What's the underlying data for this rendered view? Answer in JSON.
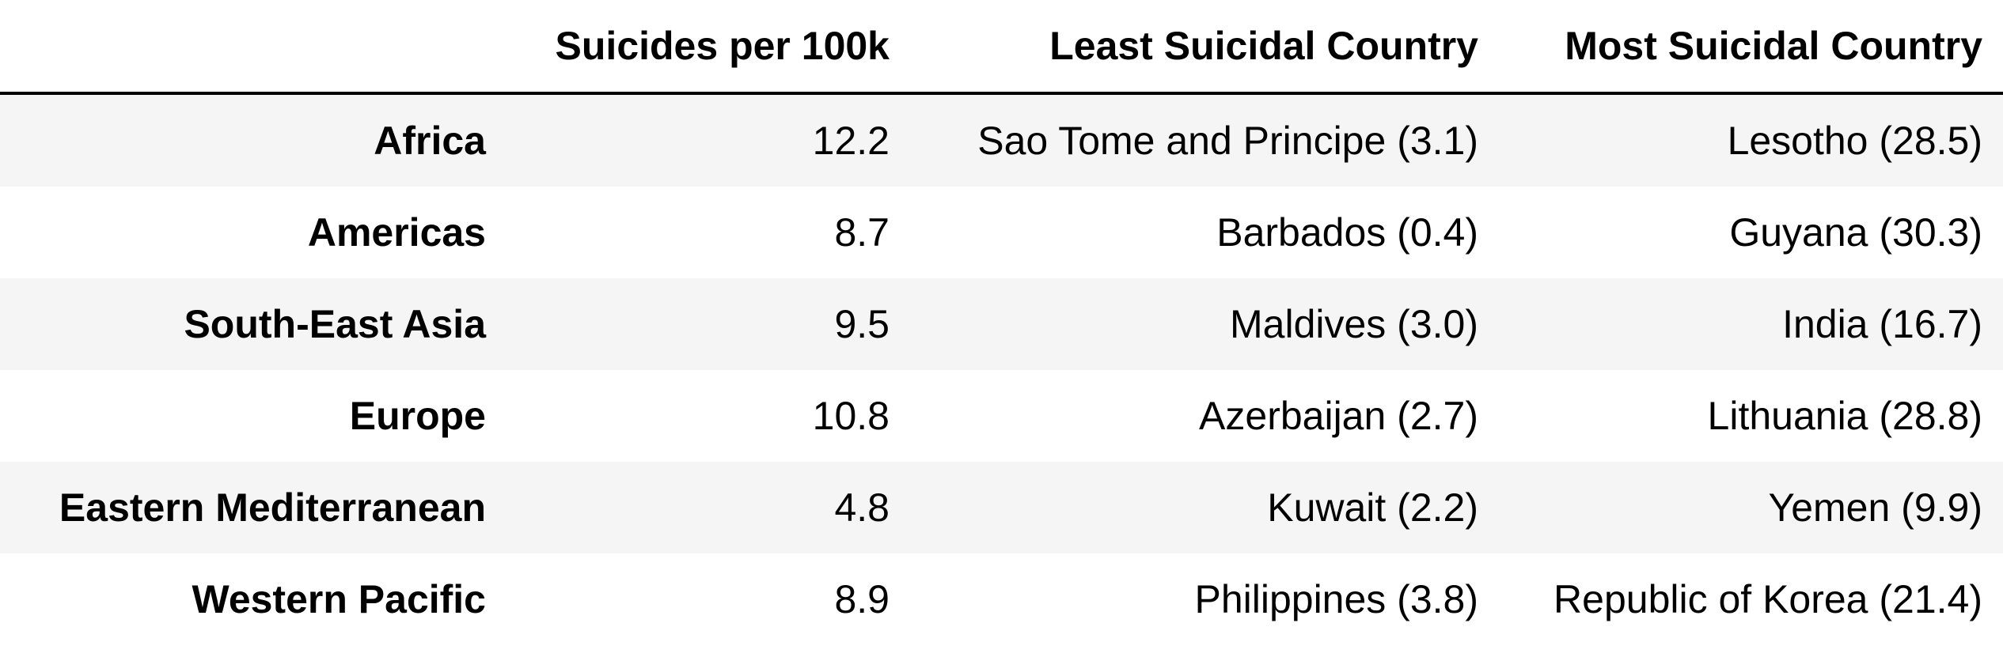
{
  "table": {
    "columns": [
      "",
      "Suicides per 100k",
      "Least Suicidal Country",
      "Most Suicidal Country"
    ],
    "rows": [
      {
        "region": "Africa",
        "rate": "12.2",
        "least": "Sao Tome and Principe (3.1)",
        "most": "Lesotho (28.5)"
      },
      {
        "region": "Americas",
        "rate": "8.7",
        "least": "Barbados (0.4)",
        "most": "Guyana (30.3)"
      },
      {
        "region": "South-East Asia",
        "rate": "9.5",
        "least": "Maldives (3.0)",
        "most": "India (16.7)"
      },
      {
        "region": "Europe",
        "rate": "10.8",
        "least": "Azerbaijan (2.7)",
        "most": "Lithuania (28.8)"
      },
      {
        "region": "Eastern Mediterranean",
        "rate": "4.8",
        "least": "Kuwait (2.2)",
        "most": "Yemen (9.9)"
      },
      {
        "region": "Western Pacific",
        "rate": "8.9",
        "least": "Philippines (3.8)",
        "most": "Republic of Korea (21.4)"
      }
    ]
  },
  "colors": {
    "stripe": "#f5f5f5",
    "text": "#000000",
    "header_rule": "#000000"
  }
}
